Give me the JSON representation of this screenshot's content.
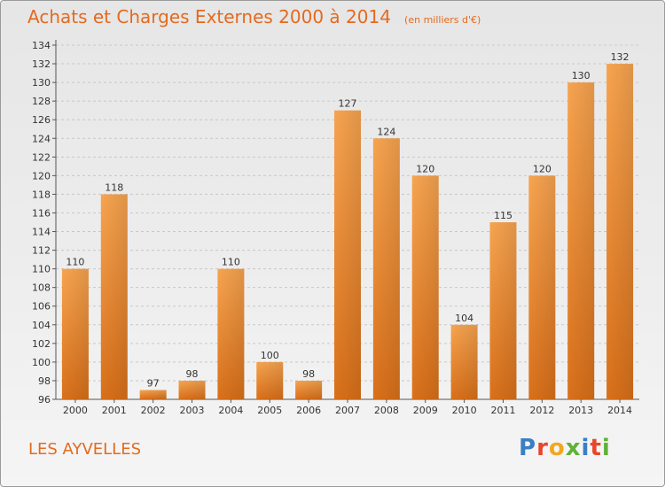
{
  "chart_data": {
    "type": "bar",
    "title": "Achats et Charges Externes 2000 à 2014",
    "unit": "(en milliers d'€)",
    "categories": [
      "2000",
      "2001",
      "2002",
      "2003",
      "2004",
      "2005",
      "2006",
      "2007",
      "2008",
      "2009",
      "2010",
      "2011",
      "2012",
      "2013",
      "2014"
    ],
    "values": [
      110,
      118,
      97,
      98,
      110,
      100,
      98,
      127,
      124,
      120,
      104,
      115,
      120,
      130,
      132
    ],
    "ylim": [
      96,
      134
    ],
    "ytick_step": 2,
    "grid": "horizontal dashed",
    "bar_color": "#f29a3c"
  },
  "footer": {
    "commune": "LES AYVELLES"
  },
  "logo": {
    "letters": [
      {
        "ch": "P",
        "color": "#3a7fc4"
      },
      {
        "ch": "r",
        "color": "#e8462b"
      },
      {
        "ch": "o",
        "color": "#f2a81d"
      },
      {
        "ch": "x",
        "color": "#5fb236"
      },
      {
        "ch": "i",
        "color": "#3a7fc4"
      },
      {
        "ch": "t",
        "color": "#e8462b"
      },
      {
        "ch": "i",
        "color": "#5fb236"
      }
    ]
  }
}
